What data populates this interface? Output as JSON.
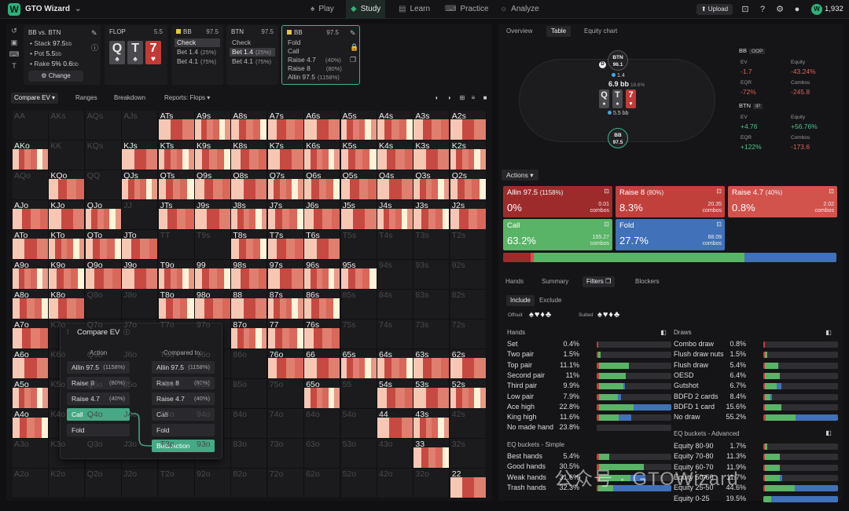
{
  "nav": {
    "brand": "GTO Wizard",
    "tabs": [
      {
        "label": "Play",
        "icon": "spade-icon"
      },
      {
        "label": "Study",
        "icon": "study-icon",
        "active": true
      },
      {
        "label": "Learn",
        "icon": "book-icon"
      },
      {
        "label": "Practice",
        "icon": "gamepad-icon"
      },
      {
        "label": "Analyze",
        "icon": "bulb-icon"
      }
    ],
    "upload": "Upload",
    "credits": "1,932",
    "avatar": "W"
  },
  "spot": {
    "title": "BB vs. BTN",
    "stack_label": "Stack",
    "stack": "97.5",
    "pot_label": "Pot",
    "pot": "5.5",
    "rake_label": "Rake",
    "rake": "5% 0.6",
    "unit": "bb",
    "change": "Change"
  },
  "streets": [
    {
      "name": "FLOP",
      "value": "5.5",
      "cards": [
        {
          "r": "Q",
          "s": "♠",
          "c": "grey"
        },
        {
          "r": "T",
          "s": "♠",
          "c": "grey"
        },
        {
          "r": "7",
          "s": "♥",
          "c": "red"
        }
      ]
    },
    {
      "name": "BB",
      "value": "97.5",
      "dot": true,
      "actions": [
        {
          "l": "Check",
          "sel": true
        },
        {
          "l": "Bet 1.4",
          "p": "(25%)"
        },
        {
          "l": "Bet 4.1",
          "p": "(75%)"
        }
      ]
    },
    {
      "name": "BTN",
      "value": "97.5",
      "actions": [
        {
          "l": "Check"
        },
        {
          "l": "Bet 1.4",
          "p": "(25%)",
          "sel": true
        },
        {
          "l": "Bet 4.1",
          "p": "(75%)"
        }
      ]
    },
    {
      "name": "BB",
      "value": "97.5",
      "dot": true,
      "active": true,
      "actions": [
        {
          "l": "Fold"
        },
        {
          "l": "Call"
        },
        {
          "l": "Raise 4.7",
          "p": "(40%)"
        },
        {
          "l": "Raise 8",
          "p": "(80%)"
        },
        {
          "l": "Allin 97.5",
          "p": "(1158%)"
        }
      ]
    }
  ],
  "toolbar": {
    "compare": "Compare EV",
    "ranges": "Ranges",
    "breakdown": "Breakdown",
    "reports": "Reports: Flops"
  },
  "grid": {
    "rows": [
      [
        "AA",
        "AKs",
        "AQs",
        "AJs",
        "ATs",
        "A9s",
        "A8s",
        "A7s",
        "A6s",
        "A5s",
        "A4s",
        "A3s",
        "A2s"
      ],
      [
        "AKo",
        "KK",
        "KQs",
        "KJs",
        "KTs",
        "K9s",
        "K8s",
        "K7s",
        "K6s",
        "K5s",
        "K4s",
        "K3s",
        "K2s"
      ],
      [
        "AQo",
        "KQo",
        "QQ",
        "QJs",
        "QTs",
        "Q9s",
        "Q8s",
        "Q7s",
        "Q6s",
        "Q5s",
        "Q4s",
        "Q3s",
        "Q2s"
      ],
      [
        "AJo",
        "KJo",
        "QJo",
        "JJ",
        "JTs",
        "J9s",
        "J8s",
        "J7s",
        "J6s",
        "J5s",
        "J4s",
        "J3s",
        "J2s"
      ],
      [
        "ATo",
        "KTo",
        "QTo",
        "JTo",
        "TT",
        "T9s",
        "T8s",
        "T7s",
        "T6s",
        "T5s",
        "T4s",
        "T3s",
        "T2s"
      ],
      [
        "A9o",
        "K9o",
        "Q9o",
        "J9o",
        "T9o",
        "99",
        "98s",
        "97s",
        "96s",
        "95s",
        "94s",
        "93s",
        "92s"
      ],
      [
        "A8o",
        "K8o",
        "Q8o",
        "J8o",
        "T8o",
        "98o",
        "88",
        "87s",
        "86s",
        "85s",
        "84s",
        "83s",
        "82s"
      ],
      [
        "A7o",
        "K7o",
        "Q7o",
        "J7o",
        "T7o",
        "97o",
        "87o",
        "77",
        "76s",
        "75s",
        "74s",
        "73s",
        "72s"
      ],
      [
        "A6o",
        "K6o",
        "Q6o",
        "J6o",
        "T6o",
        "96o",
        "86o",
        "76o",
        "66",
        "65s",
        "64s",
        "63s",
        "62s"
      ],
      [
        "A5o",
        "K5o",
        "Q5o",
        "J5o",
        "T5o",
        "95o",
        "85o",
        "75o",
        "65o",
        "55",
        "54s",
        "53s",
        "52s"
      ],
      [
        "A4o",
        "K4o",
        "Q4o",
        "J4o",
        "T4o",
        "94o",
        "84o",
        "74o",
        "64o",
        "54o",
        "44",
        "43s",
        "42s"
      ],
      [
        "A3o",
        "K3o",
        "Q3o",
        "J3o",
        "T3o",
        "93o",
        "83o",
        "73o",
        "63o",
        "53o",
        "43o",
        "33",
        "32s"
      ],
      [
        "A2o",
        "K2o",
        "Q2o",
        "J2o",
        "T2o",
        "92o",
        "82o",
        "72o",
        "62o",
        "52o",
        "42o",
        "32o",
        "22"
      ]
    ],
    "heat": [
      [
        0,
        0,
        0,
        0,
        1,
        1,
        1,
        1,
        1,
        1,
        1,
        1,
        1
      ],
      [
        1,
        0,
        0,
        1,
        1,
        1,
        1,
        1,
        1,
        1,
        1,
        1,
        1
      ],
      [
        0,
        1,
        0,
        1,
        1,
        1,
        1,
        1,
        1,
        1,
        1,
        1,
        1
      ],
      [
        1,
        1,
        1,
        0,
        1,
        1,
        1,
        1,
        1,
        1,
        1,
        1,
        1
      ],
      [
        1,
        1,
        1,
        1,
        0,
        0,
        1,
        1,
        1,
        0,
        0,
        0,
        0
      ],
      [
        1,
        1,
        1,
        1,
        1,
        1,
        1,
        1,
        1,
        1,
        0,
        0,
        0
      ],
      [
        1,
        1,
        0,
        0,
        1,
        1,
        1,
        1,
        1,
        0,
        0,
        0,
        0
      ],
      [
        1,
        0,
        0,
        0,
        0,
        0,
        1,
        1,
        1,
        0,
        0,
        0,
        0
      ],
      [
        1,
        0,
        0,
        0,
        0,
        0,
        0,
        1,
        1,
        1,
        1,
        1,
        1
      ],
      [
        1,
        0,
        0,
        0,
        0,
        0,
        0,
        0,
        1,
        0,
        1,
        1,
        1
      ],
      [
        1,
        0,
        0,
        0,
        0,
        0,
        0,
        0,
        0,
        0,
        1,
        1,
        0
      ],
      [
        0,
        0,
        0,
        0,
        0,
        0,
        0,
        0,
        0,
        0,
        0,
        1,
        0
      ],
      [
        0,
        0,
        0,
        0,
        0,
        0,
        0,
        0,
        0,
        0,
        0,
        0,
        1
      ]
    ]
  },
  "compare": {
    "title": "Compare EV",
    "action_header": "Action",
    "compared_header": "Compared to:",
    "left": [
      {
        "l": "Allin 97.5",
        "p": "(1158%)"
      },
      {
        "l": "Raise 8",
        "p": "(80%)"
      },
      {
        "l": "Raise 4.7",
        "p": "(40%)"
      },
      {
        "l": "Call",
        "sel": true
      },
      {
        "l": "Fold"
      }
    ],
    "right": [
      {
        "l": "Allin 97.5",
        "p": "(1158%)"
      },
      {
        "l": "Raise 8",
        "p": "(80%)"
      },
      {
        "l": "Raise 4.7",
        "p": "(40%)"
      },
      {
        "l": "Call"
      },
      {
        "l": "Fold"
      },
      {
        "l": "Best Action",
        "sel": true
      }
    ]
  },
  "rtabs": [
    "Overview",
    "Table",
    "Equity chart"
  ],
  "table": {
    "btn_seat": "BTN",
    "btn_stack": "96.1",
    "btn_bet": "1.4",
    "pot": "6.9 bb",
    "pot_pct": "18.6%",
    "bb_seat": "BB",
    "bb_stack": "97.5",
    "bb_bet": "5.5 bb",
    "dealer": "D",
    "board": [
      {
        "r": "Q",
        "s": "♠",
        "c": "grey"
      },
      {
        "r": "T",
        "s": "♠",
        "c": "grey"
      },
      {
        "r": "7",
        "s": "♥",
        "c": "red"
      }
    ]
  },
  "players": [
    {
      "name": "BB",
      "tag": "OOP",
      "ev_label": "EV",
      "ev": "-1.7",
      "eq_label": "Equity",
      "eq": "-43.24%",
      "eqr_label": "EQR",
      "eqr": "-72%",
      "combos_label": "Combos",
      "combos": "-245.8",
      "sign": "neg"
    },
    {
      "name": "BTN",
      "tag": "IP",
      "ev_label": "EV",
      "ev": "+4.76",
      "eq_label": "Equity",
      "eq": "+56.76%",
      "eqr_label": "EQR",
      "eqr": "+122%",
      "combos_label": "Combos",
      "combos": "-173.6",
      "sign": "pos"
    }
  ],
  "actions": {
    "label": "Actions",
    "items": [
      {
        "name": "Allin 97.5",
        "pct": "(1158%)",
        "freq": "0%",
        "combos": "0.01",
        "cls": "dark"
      },
      {
        "name": "Raise 8",
        "pct": "(80%)",
        "freq": "8.3%",
        "combos": "20.35",
        "cls": "mid"
      },
      {
        "name": "Raise 4.7",
        "pct": "(40%)",
        "freq": "0.8%",
        "combos": "2.02",
        "cls": "light"
      },
      {
        "name": "Call",
        "pct": "",
        "freq": "63.2%",
        "combos": "155.27",
        "cls": "green"
      },
      {
        "name": "Fold",
        "pct": "",
        "freq": "27.7%",
        "combos": "68.09",
        "cls": "blue"
      }
    ],
    "combos_word": "combos",
    "freqbar": [
      {
        "v": 8.3,
        "c": "#9e2b2b"
      },
      {
        "v": 0.8,
        "c": "#d2524c"
      },
      {
        "v": 63.2,
        "c": "#5ab467"
      },
      {
        "v": 27.7,
        "c": "#4071b9"
      }
    ]
  },
  "ftabs": [
    "Hands",
    "Summary",
    "Filters",
    "Blockers"
  ],
  "include": "Include",
  "exclude": "Exclude",
  "offsuit": "Offsuit",
  "suited": "Suited",
  "offsuit_suits": "♠♥♦♣",
  "suited_suits": "♠♥♦♣",
  "hands_title": "Hands",
  "draws_title": "Draws",
  "eq_simple_title": "EQ buckets - Simple",
  "eq_adv_title": "EQ buckets - Advanced",
  "hands": [
    {
      "n": "Set",
      "p": "0.4%",
      "b": [
        [
          2,
          "#c2403c"
        ],
        [
          0,
          "#5ab467"
        ],
        [
          0,
          "#4071b9"
        ]
      ]
    },
    {
      "n": "Two pair",
      "p": "1.5%",
      "b": [
        [
          2,
          "#c2403c"
        ],
        [
          3,
          "#5ab467"
        ],
        [
          0,
          "#4071b9"
        ]
      ]
    },
    {
      "n": "Top pair",
      "p": "11.1%",
      "b": [
        [
          3,
          "#c2403c"
        ],
        [
          40,
          "#5ab467"
        ],
        [
          0,
          "#4071b9"
        ]
      ]
    },
    {
      "n": "Second pair",
      "p": "11%",
      "b": [
        [
          3,
          "#c2403c"
        ],
        [
          36,
          "#5ab467"
        ],
        [
          0,
          "#4071b9"
        ]
      ]
    },
    {
      "n": "Third pair",
      "p": "9.9%",
      "b": [
        [
          3,
          "#c2403c"
        ],
        [
          33,
          "#5ab467"
        ],
        [
          2,
          "#4071b9"
        ]
      ]
    },
    {
      "n": "Low pair",
      "p": "7.9%",
      "b": [
        [
          3,
          "#c2403c"
        ],
        [
          25,
          "#5ab467"
        ],
        [
          5,
          "#4071b9"
        ]
      ]
    },
    {
      "n": "Ace high",
      "p": "22.8%",
      "b": [
        [
          3,
          "#c2403c"
        ],
        [
          47,
          "#5ab467"
        ],
        [
          50,
          "#4071b9"
        ]
      ]
    },
    {
      "n": "King high",
      "p": "11.6%",
      "b": [
        [
          3,
          "#c2403c"
        ],
        [
          27,
          "#5ab467"
        ],
        [
          16,
          "#4071b9"
        ]
      ]
    },
    {
      "n": "No made hand",
      "p": "23.8%",
      "b": [
        [
          0,
          "#c2403c"
        ],
        [
          0,
          "#5ab467"
        ],
        [
          0,
          "#4071b9"
        ]
      ]
    }
  ],
  "draws": [
    {
      "n": "Combo draw",
      "p": "0.8%",
      "b": [
        [
          2,
          "#c2403c"
        ],
        [
          0,
          "#5ab467"
        ],
        [
          0,
          "#4071b9"
        ]
      ]
    },
    {
      "n": "Flush draw nuts",
      "p": "1.5%",
      "b": [
        [
          2,
          "#c2403c"
        ],
        [
          3,
          "#5ab467"
        ],
        [
          0,
          "#4071b9"
        ]
      ]
    },
    {
      "n": "Flush draw",
      "p": "5.4%",
      "b": [
        [
          2,
          "#c2403c"
        ],
        [
          18,
          "#5ab467"
        ],
        [
          0,
          "#4071b9"
        ]
      ]
    },
    {
      "n": "OESD",
      "p": "6.4%",
      "b": [
        [
          2,
          "#c2403c"
        ],
        [
          20,
          "#5ab467"
        ],
        [
          0,
          "#4071b9"
        ]
      ]
    },
    {
      "n": "Gutshot",
      "p": "6.7%",
      "b": [
        [
          2,
          "#c2403c"
        ],
        [
          16,
          "#5ab467"
        ],
        [
          6,
          "#4071b9"
        ]
      ]
    },
    {
      "n": "BDFD 2 cards",
      "p": "8.4%",
      "b": [
        [
          2,
          "#c2403c"
        ],
        [
          7,
          "#5ab467"
        ],
        [
          3,
          "#4071b9"
        ]
      ]
    },
    {
      "n": "BDFD 1 card",
      "p": "15.6%",
      "b": [
        [
          2,
          "#c2403c"
        ],
        [
          22,
          "#5ab467"
        ],
        [
          0,
          "#4071b9"
        ]
      ]
    },
    {
      "n": "No draw",
      "p": "55.2%",
      "b": [
        [
          3,
          "#c2403c"
        ],
        [
          40,
          "#5ab467"
        ],
        [
          57,
          "#4071b9"
        ]
      ]
    }
  ],
  "eq_simple": [
    {
      "n": "Best hands",
      "p": "5.4%",
      "b": [
        [
          3,
          "#c2403c"
        ],
        [
          14,
          "#5ab467"
        ],
        [
          0,
          "#4071b9"
        ]
      ]
    },
    {
      "n": "Good hands",
      "p": "30.5%",
      "b": [
        [
          3,
          "#c2403c"
        ],
        [
          60,
          "#5ab467"
        ],
        [
          0,
          "#4071b9"
        ]
      ]
    },
    {
      "n": "Weak hands",
      "p": "31.6%",
      "b": [
        [
          3,
          "#c2403c"
        ],
        [
          42,
          "#5ab467"
        ],
        [
          20,
          "#4071b9"
        ]
      ]
    },
    {
      "n": "Trash hands",
      "p": "32.3%",
      "b": [
        [
          2,
          "#c2403c"
        ],
        [
          20,
          "#5ab467"
        ],
        [
          78,
          "#4071b9"
        ]
      ]
    }
  ],
  "eq_adv": [
    {
      "n": "Equity 80-90",
      "p": "1.7%",
      "b": [
        [
          2,
          "#c2403c"
        ],
        [
          3,
          "#5ab467"
        ],
        [
          0,
          "#4071b9"
        ]
      ]
    },
    {
      "n": "Equity 70-80",
      "p": "11.3%",
      "b": [
        [
          2,
          "#c2403c"
        ],
        [
          20,
          "#5ab467"
        ],
        [
          0,
          "#4071b9"
        ]
      ]
    },
    {
      "n": "Equity 60-70",
      "p": "11.9%",
      "b": [
        [
          2,
          "#c2403c"
        ],
        [
          20,
          "#5ab467"
        ],
        [
          0,
          "#4071b9"
        ]
      ]
    },
    {
      "n": "Equity 50-60",
      "p": "11.7%",
      "b": [
        [
          2,
          "#c2403c"
        ],
        [
          20,
          "#5ab467"
        ],
        [
          3,
          "#4071b9"
        ]
      ]
    },
    {
      "n": "Equity 25-50",
      "p": "44.6%",
      "b": [
        [
          2,
          "#c2403c"
        ],
        [
          40,
          "#5ab467"
        ],
        [
          58,
          "#4071b9"
        ]
      ]
    },
    {
      "n": "Equity 0-25",
      "p": "19.5%",
      "b": [
        [
          0,
          "#c2403c"
        ],
        [
          10,
          "#5ab467"
        ],
        [
          90,
          "#4071b9"
        ]
      ]
    }
  ],
  "watermark": "公众号 · GTOWizard"
}
